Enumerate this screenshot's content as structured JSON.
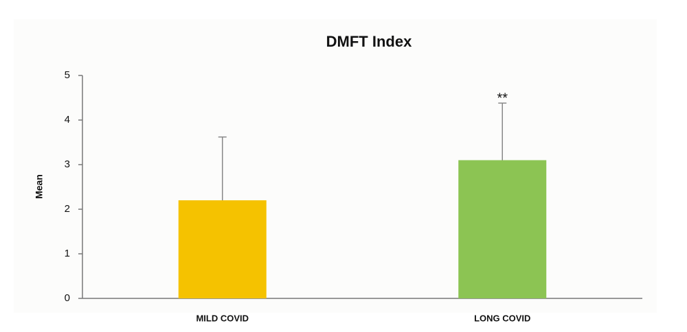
{
  "chart_data": {
    "type": "bar",
    "title": "DMFT Index",
    "ylabel": "Mean",
    "categories": [
      "MILD COVID",
      "LONG COVID"
    ],
    "values": [
      2.2,
      3.1
    ],
    "errors": [
      1.42,
      1.28
    ],
    "colors": [
      "#f5c200",
      "#8cc453"
    ],
    "annotations": [
      null,
      "**"
    ],
    "ylim": [
      0,
      5
    ],
    "yticks": [
      0,
      1,
      2,
      3,
      4,
      5
    ],
    "grid": false
  }
}
